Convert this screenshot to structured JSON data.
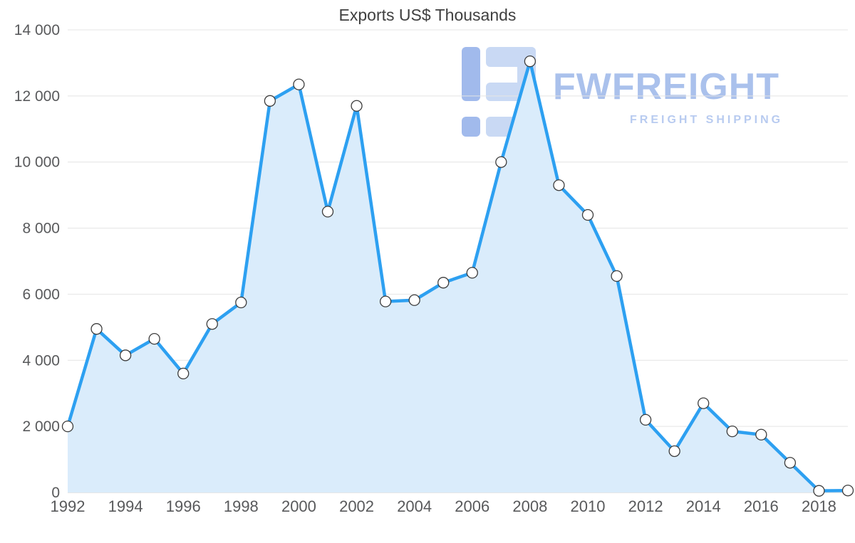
{
  "title": "Exports US$ Thousands",
  "watermark": {
    "brand": "FWFREIGHT",
    "tagline": "FREIGHT SHIPPING",
    "logo_light_color": "#c7d8f4",
    "logo_dark_color": "#9db7ec"
  },
  "chart_data": {
    "type": "area",
    "title": "Exports US$ Thousands",
    "x": [
      1992,
      1993,
      1994,
      1995,
      1996,
      1997,
      1998,
      1999,
      2000,
      2001,
      2002,
      2003,
      2004,
      2005,
      2006,
      2007,
      2008,
      2009,
      2010,
      2011,
      2012,
      2013,
      2014,
      2015,
      2016,
      2017,
      2018,
      2019
    ],
    "values": [
      2000,
      4950,
      4150,
      4650,
      3600,
      5100,
      5750,
      11850,
      12350,
      8500,
      11700,
      5780,
      5820,
      6350,
      6650,
      10000,
      13050,
      9300,
      8400,
      6550,
      2200,
      1250,
      2700,
      1850,
      1750,
      900,
      50,
      60
    ],
    "xlabel": "",
    "ylabel": "",
    "ylim": [
      0,
      14000
    ],
    "ytick_step": 2000,
    "ytick_labels": [
      "0",
      "2 000",
      "4 000",
      "6 000",
      "8 000",
      "10 000",
      "12 000",
      "14 000"
    ],
    "xtick_labels": [
      "1992",
      "1994",
      "1996",
      "1998",
      "2000",
      "2002",
      "2004",
      "2006",
      "2008",
      "2010",
      "2012",
      "2014",
      "2016",
      "2018"
    ],
    "grid": "horizontal",
    "legend": "none",
    "line_color": "#2da0f1",
    "area_color": "#daecfb",
    "marker_fill": "#ffffff",
    "marker_stroke": "#3d3d3d",
    "grid_color": "#e4e4e4",
    "axis_color": "#cccccc",
    "tick_color": "#58595b"
  }
}
